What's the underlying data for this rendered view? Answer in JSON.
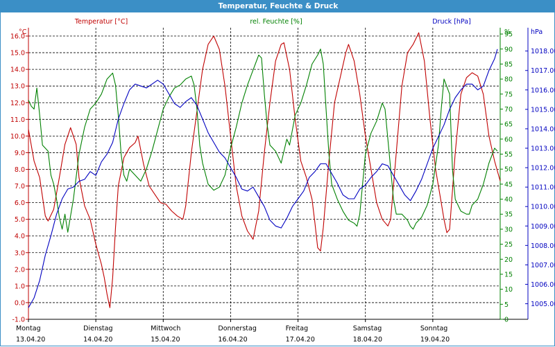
{
  "window": {
    "title": "Temperatur, Feuchte & Druck"
  },
  "chart_data": {
    "type": "line",
    "title": "Temperatur, Feuchte & Druck",
    "grid": true,
    "x_tick_labels": [
      {
        "day": "Montag",
        "date": "13.04.20"
      },
      {
        "day": "Dienstag",
        "date": "14.04.20"
      },
      {
        "day": "Mittwoch",
        "date": "15.04.20"
      },
      {
        "day": "Donnerstag",
        "date": "16.04.20"
      },
      {
        "day": "Freitag",
        "date": "17.04.20"
      },
      {
        "day": "Samstag",
        "date": "18.04.20"
      },
      {
        "day": "Sonntag",
        "date": "19.04.20"
      }
    ],
    "x_unit": "hours since Montag 13.04.20 00:00",
    "xlim": [
      0,
      168
    ],
    "axes": {
      "temperature": {
        "unit_label": "°C",
        "ylim": [
          -1.0,
          16.5
        ],
        "ticks": [
          -1.0,
          0.0,
          1.0,
          2.0,
          3.0,
          4.0,
          5.0,
          6.0,
          7.0,
          8.0,
          9.0,
          10.0,
          11.0,
          12.0,
          13.0,
          14.0,
          15.0,
          16.0
        ],
        "color": "#c00000"
      },
      "humidity": {
        "unit_label": "%",
        "ylim": [
          0,
          97.1
        ],
        "ticks": [
          0,
          5,
          10,
          15,
          20,
          25,
          30,
          35,
          40,
          45,
          50,
          55,
          60,
          65,
          70,
          75,
          80,
          85,
          90,
          95
        ],
        "color": "#008000"
      },
      "pressure": {
        "unit_label": "hPa",
        "ylim": [
          1004.2,
          1019.2
        ],
        "ticks": [
          1005,
          1006,
          1007,
          1008,
          1009,
          1010,
          1011,
          1012,
          1013,
          1014,
          1015,
          1016,
          1017,
          1018
        ],
        "color": "#0000c0"
      }
    },
    "series": [
      {
        "name": "Temperatur [°C]",
        "axis": "temperature",
        "color": "#c00000",
        "points": [
          [
            0,
            10.4
          ],
          [
            2,
            8.5
          ],
          [
            4,
            7.5
          ],
          [
            6,
            5.2
          ],
          [
            7,
            4.9
          ],
          [
            9,
            5.6
          ],
          [
            11,
            7.5
          ],
          [
            13,
            9.5
          ],
          [
            15,
            10.5
          ],
          [
            17,
            9.5
          ],
          [
            18,
            7.5
          ],
          [
            20,
            5.8
          ],
          [
            22,
            5.0
          ],
          [
            24,
            3.5
          ],
          [
            26,
            2.3
          ],
          [
            27,
            1.5
          ],
          [
            28,
            0.5
          ],
          [
            29,
            -0.3
          ],
          [
            30,
            1.5
          ],
          [
            31,
            4.5
          ],
          [
            32,
            7.0
          ],
          [
            34,
            8.7
          ],
          [
            36,
            9.3
          ],
          [
            38,
            9.6
          ],
          [
            39,
            10.0
          ],
          [
            41,
            8.3
          ],
          [
            43,
            7.0
          ],
          [
            45,
            6.5
          ],
          [
            47,
            6.0
          ],
          [
            49,
            5.9
          ],
          [
            51,
            5.5
          ],
          [
            53,
            5.2
          ],
          [
            55,
            5.0
          ],
          [
            56,
            5.8
          ],
          [
            58,
            9.0
          ],
          [
            60,
            11.5
          ],
          [
            62,
            14.0
          ],
          [
            64,
            15.5
          ],
          [
            66,
            16.0
          ],
          [
            68,
            15.2
          ],
          [
            70,
            13.0
          ],
          [
            72,
            10.0
          ],
          [
            74,
            7.0
          ],
          [
            76,
            5.2
          ],
          [
            78,
            4.3
          ],
          [
            80,
            3.8
          ],
          [
            82,
            5.5
          ],
          [
            84,
            9.0
          ],
          [
            86,
            12.0
          ],
          [
            88,
            14.5
          ],
          [
            90,
            15.5
          ],
          [
            91,
            15.6
          ],
          [
            93,
            14.0
          ],
          [
            95,
            11.0
          ],
          [
            97,
            8.5
          ],
          [
            99,
            7.5
          ],
          [
            101,
            6.2
          ],
          [
            102,
            4.8
          ],
          [
            103,
            3.3
          ],
          [
            104,
            3.1
          ],
          [
            105,
            4.5
          ],
          [
            107,
            8.5
          ],
          [
            109,
            12.0
          ],
          [
            111,
            13.5
          ],
          [
            113,
            15.0
          ],
          [
            114,
            15.5
          ],
          [
            116,
            14.5
          ],
          [
            118,
            12.5
          ],
          [
            120,
            10.0
          ],
          [
            122,
            8.0
          ],
          [
            124,
            6.0
          ],
          [
            126,
            5.0
          ],
          [
            128,
            4.6
          ],
          [
            129,
            5.0
          ],
          [
            131,
            9.0
          ],
          [
            133,
            13.0
          ],
          [
            135,
            15.0
          ],
          [
            137,
            15.5
          ],
          [
            139,
            16.2
          ],
          [
            141,
            14.5
          ],
          [
            143,
            11.0
          ],
          [
            145,
            8.0
          ],
          [
            147,
            6.0
          ],
          [
            148,
            5.0
          ],
          [
            149,
            4.2
          ],
          [
            150,
            4.4
          ],
          [
            152,
            9.0
          ],
          [
            154,
            12.5
          ],
          [
            156,
            13.5
          ],
          [
            158,
            13.8
          ],
          [
            160,
            13.6
          ],
          [
            162,
            12.5
          ],
          [
            164,
            10.0
          ],
          [
            166,
            8.5
          ],
          [
            168,
            7.3
          ]
        ]
      },
      {
        "name": "rel. Feuchte [%]",
        "axis": "humidity",
        "color": "#008000",
        "points": [
          [
            0,
            73
          ],
          [
            1,
            71
          ],
          [
            2,
            70
          ],
          [
            3,
            77
          ],
          [
            4,
            68
          ],
          [
            5,
            58
          ],
          [
            7,
            56
          ],
          [
            8,
            48
          ],
          [
            9,
            45
          ],
          [
            10,
            40
          ],
          [
            11,
            34
          ],
          [
            12,
            30
          ],
          [
            13,
            35
          ],
          [
            14,
            29
          ],
          [
            16,
            40
          ],
          [
            18,
            55
          ],
          [
            20,
            64
          ],
          [
            22,
            70
          ],
          [
            24,
            72
          ],
          [
            26,
            75
          ],
          [
            28,
            80
          ],
          [
            30,
            82
          ],
          [
            31,
            78
          ],
          [
            32,
            68
          ],
          [
            33,
            55
          ],
          [
            34,
            48
          ],
          [
            35,
            46
          ],
          [
            36,
            50
          ],
          [
            38,
            48
          ],
          [
            40,
            46
          ],
          [
            42,
            50
          ],
          [
            44,
            56
          ],
          [
            46,
            63
          ],
          [
            48,
            70
          ],
          [
            50,
            74
          ],
          [
            52,
            77
          ],
          [
            54,
            78
          ],
          [
            56,
            80
          ],
          [
            58,
            81
          ],
          [
            59,
            78
          ],
          [
            60,
            70
          ],
          [
            61,
            58
          ],
          [
            62,
            52
          ],
          [
            64,
            45
          ],
          [
            66,
            43
          ],
          [
            68,
            44
          ],
          [
            70,
            48
          ],
          [
            72,
            57
          ],
          [
            74,
            64
          ],
          [
            76,
            72
          ],
          [
            78,
            78
          ],
          [
            80,
            83
          ],
          [
            82,
            88
          ],
          [
            83,
            87
          ],
          [
            84,
            75
          ],
          [
            85,
            65
          ],
          [
            86,
            58
          ],
          [
            88,
            56
          ],
          [
            90,
            52
          ],
          [
            92,
            60
          ],
          [
            93,
            58
          ],
          [
            95,
            68
          ],
          [
            97,
            72
          ],
          [
            99,
            78
          ],
          [
            101,
            85
          ],
          [
            103,
            88
          ],
          [
            104,
            90
          ],
          [
            105,
            85
          ],
          [
            106,
            70
          ],
          [
            107,
            55
          ],
          [
            108,
            45
          ],
          [
            110,
            40
          ],
          [
            112,
            36
          ],
          [
            114,
            33
          ],
          [
            116,
            32
          ],
          [
            117,
            31
          ],
          [
            118,
            35
          ],
          [
            120,
            55
          ],
          [
            122,
            62
          ],
          [
            124,
            66
          ],
          [
            126,
            72
          ],
          [
            127,
            70
          ],
          [
            128,
            60
          ],
          [
            130,
            40
          ],
          [
            131,
            35
          ],
          [
            133,
            35
          ],
          [
            135,
            33
          ],
          [
            136,
            31
          ],
          [
            137,
            30
          ],
          [
            138,
            32
          ],
          [
            140,
            34
          ],
          [
            142,
            38
          ],
          [
            144,
            45
          ],
          [
            146,
            58
          ],
          [
            147,
            70
          ],
          [
            148,
            80
          ],
          [
            150,
            75
          ],
          [
            151,
            50
          ],
          [
            152,
            40
          ],
          [
            154,
            36
          ],
          [
            156,
            35
          ],
          [
            157,
            35
          ],
          [
            158,
            38
          ],
          [
            160,
            40
          ],
          [
            162,
            45
          ],
          [
            164,
            52
          ],
          [
            166,
            57
          ],
          [
            167,
            56
          ]
        ]
      },
      {
        "name": "Druck [hPa]",
        "axis": "pressure",
        "color": "#0000c0",
        "points": [
          [
            0,
            1004.8
          ],
          [
            2,
            1005.3
          ],
          [
            4,
            1006.2
          ],
          [
            6,
            1007.5
          ],
          [
            8,
            1008.5
          ],
          [
            10,
            1009.6
          ],
          [
            12,
            1010.4
          ],
          [
            14,
            1010.9
          ],
          [
            16,
            1011.0
          ],
          [
            18,
            1011.3
          ],
          [
            20,
            1011.4
          ],
          [
            22,
            1011.8
          ],
          [
            24,
            1011.6
          ],
          [
            26,
            1012.3
          ],
          [
            28,
            1012.7
          ],
          [
            30,
            1013.3
          ],
          [
            32,
            1014.5
          ],
          [
            34,
            1015.3
          ],
          [
            36,
            1016.0
          ],
          [
            38,
            1016.3
          ],
          [
            40,
            1016.2
          ],
          [
            42,
            1016.1
          ],
          [
            44,
            1016.3
          ],
          [
            46,
            1016.5
          ],
          [
            48,
            1016.3
          ],
          [
            50,
            1015.8
          ],
          [
            52,
            1015.3
          ],
          [
            54,
            1015.1
          ],
          [
            56,
            1015.4
          ],
          [
            58,
            1015.6
          ],
          [
            60,
            1015.2
          ],
          [
            62,
            1014.5
          ],
          [
            64,
            1013.8
          ],
          [
            66,
            1013.3
          ],
          [
            68,
            1012.8
          ],
          [
            70,
            1012.5
          ],
          [
            72,
            1012.0
          ],
          [
            74,
            1011.5
          ],
          [
            76,
            1010.9
          ],
          [
            78,
            1010.8
          ],
          [
            80,
            1011.0
          ],
          [
            82,
            1010.5
          ],
          [
            84,
            1010.0
          ],
          [
            86,
            1009.3
          ],
          [
            88,
            1009.0
          ],
          [
            90,
            1008.9
          ],
          [
            92,
            1009.4
          ],
          [
            94,
            1010.0
          ],
          [
            96,
            1010.4
          ],
          [
            98,
            1010.8
          ],
          [
            100,
            1011.5
          ],
          [
            102,
            1011.8
          ],
          [
            104,
            1012.2
          ],
          [
            106,
            1012.2
          ],
          [
            108,
            1011.7
          ],
          [
            110,
            1011.2
          ],
          [
            112,
            1010.6
          ],
          [
            114,
            1010.4
          ],
          [
            116,
            1010.4
          ],
          [
            118,
            1010.9
          ],
          [
            120,
            1011.1
          ],
          [
            122,
            1011.5
          ],
          [
            124,
            1011.8
          ],
          [
            126,
            1012.2
          ],
          [
            128,
            1012.1
          ],
          [
            130,
            1011.6
          ],
          [
            132,
            1011.1
          ],
          [
            134,
            1010.6
          ],
          [
            136,
            1010.3
          ],
          [
            138,
            1010.8
          ],
          [
            140,
            1011.4
          ],
          [
            142,
            1012.2
          ],
          [
            144,
            1013.0
          ],
          [
            146,
            1013.6
          ],
          [
            148,
            1014.2
          ],
          [
            150,
            1015.0
          ],
          [
            152,
            1015.6
          ],
          [
            154,
            1016.0
          ],
          [
            156,
            1016.3
          ],
          [
            158,
            1016.3
          ],
          [
            160,
            1016.0
          ],
          [
            162,
            1016.2
          ],
          [
            164,
            1017.0
          ],
          [
            166,
            1017.6
          ],
          [
            167,
            1018.1
          ]
        ]
      }
    ],
    "legend": [
      "Temperatur [°C]",
      "rel. Feuchte [%]",
      "Druck [hPa]"
    ]
  }
}
